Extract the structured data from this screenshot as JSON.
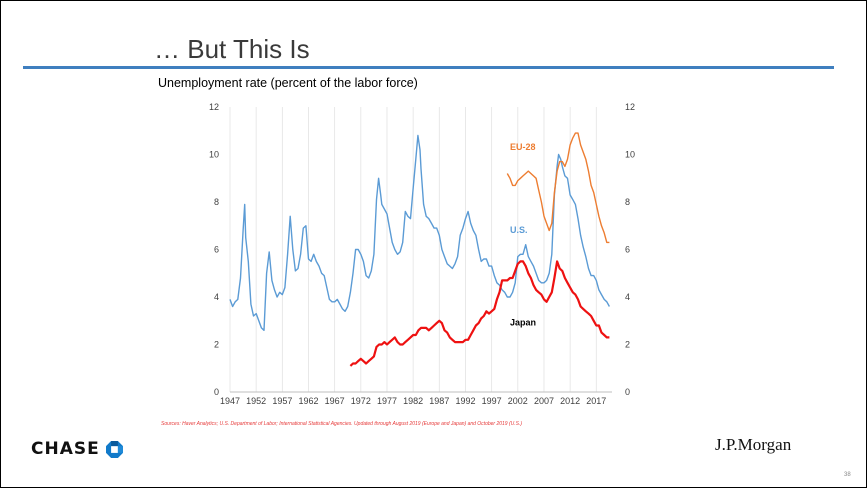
{
  "slide": {
    "title": "… But This Is",
    "subtitle": "Unemployment rate (percent of the labor force)",
    "sources": "Sources: Haver Analytics; U.S. Department of Labor; International Statistical Agencies. Updated through August 2019 (Europe and Japan) and October 2019 (U.S.)",
    "page_number": "38",
    "colors": {
      "accent_rule": "#3f7fbf",
      "title": "#3a3a3a",
      "sources": "#e63a3a"
    }
  },
  "logos": {
    "chase": {
      "text": "CHASE",
      "icon": "chase-octagon-icon",
      "color": "#117aca"
    },
    "jpmorgan": {
      "text": "J.P.Morgan"
    }
  },
  "chart_data": {
    "type": "line",
    "title": "",
    "xlabel": "",
    "ylabel": "",
    "xlim": [
      1947,
      2020
    ],
    "ylim": [
      0,
      12
    ],
    "x_ticks": [
      "1947",
      "1952",
      "1957",
      "1962",
      "1967",
      "1972",
      "1977",
      "1982",
      "1987",
      "1992",
      "1997",
      "2002",
      "2007",
      "2012",
      "2017"
    ],
    "y_ticks_left": [
      "0",
      "2",
      "4",
      "6",
      "8",
      "10",
      "12"
    ],
    "y_ticks_right": [
      "0",
      "2",
      "4",
      "6",
      "8",
      "10",
      "12"
    ],
    "grid": "vertical",
    "series": [
      {
        "name": "U.S.",
        "color": "#5b9bd5",
        "points": [
          [
            1947.0,
            3.9
          ],
          [
            1947.5,
            3.6
          ],
          [
            1948.0,
            3.8
          ],
          [
            1948.5,
            3.9
          ],
          [
            1949.0,
            4.8
          ],
          [
            1949.5,
            6.8
          ],
          [
            1949.8,
            7.9
          ],
          [
            1950.0,
            6.5
          ],
          [
            1950.5,
            5.5
          ],
          [
            1951.0,
            3.7
          ],
          [
            1951.5,
            3.2
          ],
          [
            1952.0,
            3.3
          ],
          [
            1952.5,
            3.0
          ],
          [
            1953.0,
            2.7
          ],
          [
            1953.5,
            2.6
          ],
          [
            1954.0,
            5.0
          ],
          [
            1954.5,
            5.9
          ],
          [
            1955.0,
            4.7
          ],
          [
            1955.5,
            4.3
          ],
          [
            1956.0,
            4.0
          ],
          [
            1956.5,
            4.2
          ],
          [
            1957.0,
            4.1
          ],
          [
            1957.5,
            4.4
          ],
          [
            1958.0,
            5.8
          ],
          [
            1958.5,
            7.4
          ],
          [
            1959.0,
            6.0
          ],
          [
            1959.5,
            5.1
          ],
          [
            1960.0,
            5.2
          ],
          [
            1960.5,
            5.8
          ],
          [
            1961.0,
            6.9
          ],
          [
            1961.5,
            7.0
          ],
          [
            1962.0,
            5.6
          ],
          [
            1962.5,
            5.5
          ],
          [
            1963.0,
            5.8
          ],
          [
            1963.5,
            5.5
          ],
          [
            1964.0,
            5.3
          ],
          [
            1964.5,
            5.0
          ],
          [
            1965.0,
            4.9
          ],
          [
            1965.5,
            4.4
          ],
          [
            1966.0,
            3.9
          ],
          [
            1966.5,
            3.8
          ],
          [
            1967.0,
            3.8
          ],
          [
            1967.5,
            3.9
          ],
          [
            1968.0,
            3.7
          ],
          [
            1968.5,
            3.5
          ],
          [
            1969.0,
            3.4
          ],
          [
            1969.5,
            3.6
          ],
          [
            1970.0,
            4.2
          ],
          [
            1970.5,
            5.0
          ],
          [
            1971.0,
            6.0
          ],
          [
            1971.5,
            6.0
          ],
          [
            1972.0,
            5.8
          ],
          [
            1972.5,
            5.5
          ],
          [
            1973.0,
            4.9
          ],
          [
            1973.5,
            4.8
          ],
          [
            1974.0,
            5.1
          ],
          [
            1974.5,
            5.8
          ],
          [
            1975.0,
            8.1
          ],
          [
            1975.4,
            9.0
          ],
          [
            1975.8,
            8.3
          ],
          [
            1976.0,
            7.9
          ],
          [
            1976.5,
            7.7
          ],
          [
            1977.0,
            7.5
          ],
          [
            1977.5,
            6.9
          ],
          [
            1978.0,
            6.3
          ],
          [
            1978.5,
            6.0
          ],
          [
            1979.0,
            5.8
          ],
          [
            1979.5,
            5.9
          ],
          [
            1980.0,
            6.3
          ],
          [
            1980.5,
            7.6
          ],
          [
            1981.0,
            7.4
          ],
          [
            1981.5,
            7.3
          ],
          [
            1982.0,
            8.6
          ],
          [
            1982.5,
            9.8
          ],
          [
            1982.9,
            10.8
          ],
          [
            1983.3,
            10.2
          ],
          [
            1983.5,
            9.4
          ],
          [
            1984.0,
            7.9
          ],
          [
            1984.5,
            7.4
          ],
          [
            1985.0,
            7.3
          ],
          [
            1985.5,
            7.1
          ],
          [
            1986.0,
            6.9
          ],
          [
            1986.5,
            6.9
          ],
          [
            1987.0,
            6.6
          ],
          [
            1987.5,
            6.0
          ],
          [
            1988.0,
            5.7
          ],
          [
            1988.5,
            5.4
          ],
          [
            1989.0,
            5.3
          ],
          [
            1989.5,
            5.2
          ],
          [
            1990.0,
            5.4
          ],
          [
            1990.5,
            5.7
          ],
          [
            1991.0,
            6.6
          ],
          [
            1991.5,
            6.9
          ],
          [
            1992.0,
            7.3
          ],
          [
            1992.5,
            7.6
          ],
          [
            1993.0,
            7.1
          ],
          [
            1993.5,
            6.8
          ],
          [
            1994.0,
            6.6
          ],
          [
            1994.5,
            6.0
          ],
          [
            1995.0,
            5.5
          ],
          [
            1995.5,
            5.6
          ],
          [
            1996.0,
            5.6
          ],
          [
            1996.5,
            5.3
          ],
          [
            1997.0,
            5.3
          ],
          [
            1997.5,
            4.9
          ],
          [
            1998.0,
            4.6
          ],
          [
            1998.5,
            4.5
          ],
          [
            1999.0,
            4.3
          ],
          [
            1999.5,
            4.2
          ],
          [
            2000.0,
            4.0
          ],
          [
            2000.5,
            4.0
          ],
          [
            2001.0,
            4.2
          ],
          [
            2001.5,
            4.6
          ],
          [
            2002.0,
            5.7
          ],
          [
            2002.5,
            5.8
          ],
          [
            2003.0,
            5.8
          ],
          [
            2003.5,
            6.2
          ],
          [
            2004.0,
            5.7
          ],
          [
            2004.5,
            5.5
          ],
          [
            2005.0,
            5.3
          ],
          [
            2005.5,
            5.0
          ],
          [
            2006.0,
            4.7
          ],
          [
            2006.5,
            4.6
          ],
          [
            2007.0,
            4.6
          ],
          [
            2007.5,
            4.7
          ],
          [
            2008.0,
            5.0
          ],
          [
            2008.5,
            5.8
          ],
          [
            2009.0,
            8.3
          ],
          [
            2009.5,
            9.5
          ],
          [
            2009.8,
            10.0
          ],
          [
            2010.2,
            9.8
          ],
          [
            2010.5,
            9.5
          ],
          [
            2011.0,
            9.1
          ],
          [
            2011.5,
            9.0
          ],
          [
            2012.0,
            8.3
          ],
          [
            2012.5,
            8.1
          ],
          [
            2013.0,
            7.9
          ],
          [
            2013.5,
            7.3
          ],
          [
            2014.0,
            6.6
          ],
          [
            2014.5,
            6.1
          ],
          [
            2015.0,
            5.7
          ],
          [
            2015.5,
            5.2
          ],
          [
            2016.0,
            4.9
          ],
          [
            2016.5,
            4.9
          ],
          [
            2017.0,
            4.7
          ],
          [
            2017.5,
            4.3
          ],
          [
            2018.0,
            4.1
          ],
          [
            2018.5,
            3.9
          ],
          [
            2019.0,
            3.8
          ],
          [
            2019.5,
            3.6
          ]
        ]
      },
      {
        "name": "EU-28",
        "color": "#ed7d31",
        "points": [
          [
            2000.0,
            9.2
          ],
          [
            2000.5,
            9.0
          ],
          [
            2001.0,
            8.7
          ],
          [
            2001.5,
            8.7
          ],
          [
            2002.0,
            8.9
          ],
          [
            2002.5,
            9.0
          ],
          [
            2003.0,
            9.1
          ],
          [
            2003.5,
            9.2
          ],
          [
            2004.0,
            9.3
          ],
          [
            2004.5,
            9.2
          ],
          [
            2005.0,
            9.1
          ],
          [
            2005.5,
            9.0
          ],
          [
            2006.0,
            8.5
          ],
          [
            2006.5,
            8.0
          ],
          [
            2007.0,
            7.4
          ],
          [
            2007.5,
            7.1
          ],
          [
            2008.0,
            6.8
          ],
          [
            2008.5,
            7.1
          ],
          [
            2009.0,
            8.4
          ],
          [
            2009.5,
            9.3
          ],
          [
            2010.0,
            9.7
          ],
          [
            2010.5,
            9.7
          ],
          [
            2011.0,
            9.5
          ],
          [
            2011.5,
            9.8
          ],
          [
            2012.0,
            10.4
          ],
          [
            2012.5,
            10.7
          ],
          [
            2013.0,
            10.9
          ],
          [
            2013.5,
            10.9
          ],
          [
            2014.0,
            10.4
          ],
          [
            2014.5,
            10.1
          ],
          [
            2015.0,
            9.8
          ],
          [
            2015.5,
            9.3
          ],
          [
            2016.0,
            8.7
          ],
          [
            2016.5,
            8.4
          ],
          [
            2017.0,
            7.9
          ],
          [
            2017.5,
            7.4
          ],
          [
            2018.0,
            7.0
          ],
          [
            2018.5,
            6.7
          ],
          [
            2019.0,
            6.3
          ],
          [
            2019.5,
            6.3
          ]
        ]
      },
      {
        "name": "Japan",
        "color": "#ee1111",
        "points": [
          [
            1970.0,
            1.1
          ],
          [
            1970.5,
            1.2
          ],
          [
            1971.0,
            1.2
          ],
          [
            1971.5,
            1.3
          ],
          [
            1972.0,
            1.4
          ],
          [
            1972.5,
            1.3
          ],
          [
            1973.0,
            1.2
          ],
          [
            1973.5,
            1.3
          ],
          [
            1974.0,
            1.4
          ],
          [
            1974.5,
            1.5
          ],
          [
            1975.0,
            1.9
          ],
          [
            1975.5,
            2.0
          ],
          [
            1976.0,
            2.0
          ],
          [
            1976.5,
            2.1
          ],
          [
            1977.0,
            2.0
          ],
          [
            1977.5,
            2.1
          ],
          [
            1978.0,
            2.2
          ],
          [
            1978.5,
            2.3
          ],
          [
            1979.0,
            2.1
          ],
          [
            1979.5,
            2.0
          ],
          [
            1980.0,
            2.0
          ],
          [
            1980.5,
            2.1
          ],
          [
            1981.0,
            2.2
          ],
          [
            1981.5,
            2.3
          ],
          [
            1982.0,
            2.4
          ],
          [
            1982.5,
            2.4
          ],
          [
            1983.0,
            2.6
          ],
          [
            1983.5,
            2.7
          ],
          [
            1984.0,
            2.7
          ],
          [
            1984.5,
            2.7
          ],
          [
            1985.0,
            2.6
          ],
          [
            1985.5,
            2.7
          ],
          [
            1986.0,
            2.8
          ],
          [
            1986.5,
            2.9
          ],
          [
            1987.0,
            3.0
          ],
          [
            1987.5,
            2.9
          ],
          [
            1988.0,
            2.6
          ],
          [
            1988.5,
            2.5
          ],
          [
            1989.0,
            2.3
          ],
          [
            1989.5,
            2.2
          ],
          [
            1990.0,
            2.1
          ],
          [
            1990.5,
            2.1
          ],
          [
            1991.0,
            2.1
          ],
          [
            1991.5,
            2.1
          ],
          [
            1992.0,
            2.2
          ],
          [
            1992.5,
            2.2
          ],
          [
            1993.0,
            2.4
          ],
          [
            1993.5,
            2.6
          ],
          [
            1994.0,
            2.8
          ],
          [
            1994.5,
            2.9
          ],
          [
            1995.0,
            3.1
          ],
          [
            1995.5,
            3.2
          ],
          [
            1996.0,
            3.4
          ],
          [
            1996.5,
            3.3
          ],
          [
            1997.0,
            3.4
          ],
          [
            1997.5,
            3.5
          ],
          [
            1998.0,
            3.9
          ],
          [
            1998.5,
            4.2
          ],
          [
            1999.0,
            4.7
          ],
          [
            1999.5,
            4.7
          ],
          [
            2000.0,
            4.7
          ],
          [
            2000.5,
            4.8
          ],
          [
            2001.0,
            4.8
          ],
          [
            2001.5,
            5.1
          ],
          [
            2002.0,
            5.4
          ],
          [
            2002.5,
            5.5
          ],
          [
            2003.0,
            5.5
          ],
          [
            2003.5,
            5.3
          ],
          [
            2004.0,
            5.0
          ],
          [
            2004.5,
            4.8
          ],
          [
            2005.0,
            4.5
          ],
          [
            2005.5,
            4.3
          ],
          [
            2006.0,
            4.2
          ],
          [
            2006.5,
            4.1
          ],
          [
            2007.0,
            3.9
          ],
          [
            2007.5,
            3.8
          ],
          [
            2008.0,
            4.0
          ],
          [
            2008.5,
            4.2
          ],
          [
            2009.0,
            4.8
          ],
          [
            2009.5,
            5.5
          ],
          [
            2010.0,
            5.2
          ],
          [
            2010.5,
            5.1
          ],
          [
            2011.0,
            4.8
          ],
          [
            2011.5,
            4.6
          ],
          [
            2012.0,
            4.4
          ],
          [
            2012.5,
            4.2
          ],
          [
            2013.0,
            4.1
          ],
          [
            2013.5,
            3.9
          ],
          [
            2014.0,
            3.6
          ],
          [
            2014.5,
            3.5
          ],
          [
            2015.0,
            3.4
          ],
          [
            2015.5,
            3.3
          ],
          [
            2016.0,
            3.2
          ],
          [
            2016.5,
            3.0
          ],
          [
            2017.0,
            2.8
          ],
          [
            2017.5,
            2.8
          ],
          [
            2018.0,
            2.5
          ],
          [
            2018.5,
            2.4
          ],
          [
            2019.0,
            2.3
          ],
          [
            2019.5,
            2.3
          ]
        ]
      }
    ],
    "annotations": [
      {
        "text": "EU-28",
        "x": 2000.5,
        "y": 10.2,
        "color": "#ed7d31"
      },
      {
        "text": "U.S.",
        "x": 2000.5,
        "y": 6.7,
        "color": "#5b9bd5"
      },
      {
        "text": "Japan",
        "x": 2000.5,
        "y": 2.8,
        "color": "#000000"
      }
    ]
  }
}
